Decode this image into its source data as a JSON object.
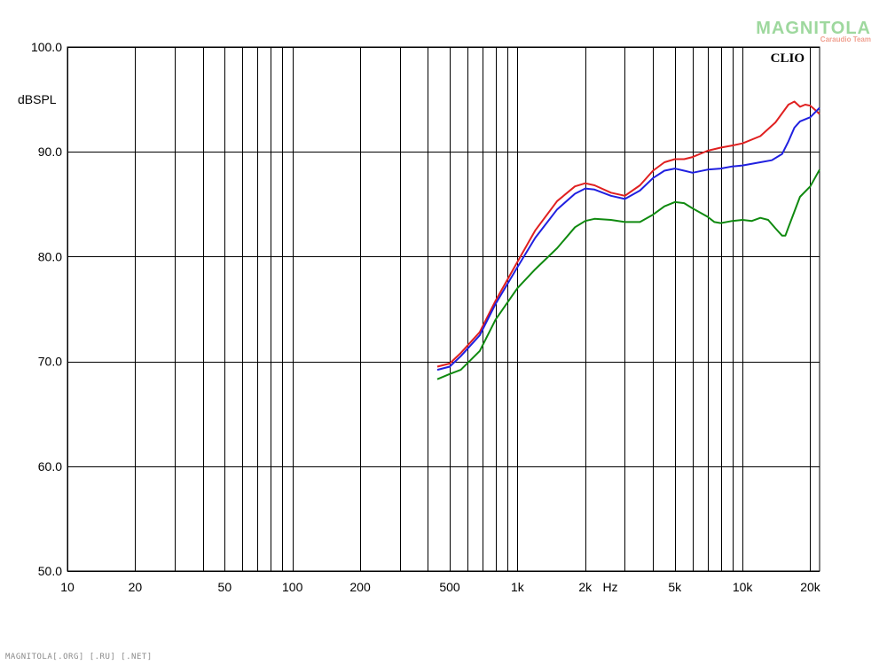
{
  "watermark": {
    "logo": "MAGNITOLA",
    "subtitle": "Caraudio Team"
  },
  "footer": "MAGNITOLA[.ORG] [.RU] [.NET]",
  "chart_data": {
    "type": "line",
    "brand_label": "CLIO",
    "ylabel": "dBSPL",
    "xlabel": "Hz",
    "xscale": "log",
    "xlim": [
      10,
      22000
    ],
    "ylim": [
      50,
      100
    ],
    "grid": true,
    "x_ticks": [
      10,
      20,
      50,
      100,
      200,
      500,
      1000,
      2000,
      5000,
      10000,
      20000
    ],
    "x_tick_labels": [
      "10",
      "20",
      "50",
      "100",
      "200",
      "500",
      "1k",
      "2k",
      "5k",
      "10k",
      "20k"
    ],
    "y_ticks": [
      50,
      60,
      70,
      80,
      90,
      100
    ],
    "y_tick_labels": [
      "50.0",
      "60.0",
      "70.0",
      "80.0",
      "90.0",
      "100.0"
    ],
    "colors": {
      "red": "#e02020",
      "blue": "#2020e0",
      "green": "#108a10"
    },
    "series": [
      {
        "color": "#e02020",
        "points": [
          [
            440,
            69.5
          ],
          [
            500,
            69.8
          ],
          [
            560,
            70.8
          ],
          [
            680,
            72.8
          ],
          [
            800,
            75.8
          ],
          [
            1000,
            79.5
          ],
          [
            1200,
            82.5
          ],
          [
            1500,
            85.3
          ],
          [
            1800,
            86.7
          ],
          [
            2000,
            87.0
          ],
          [
            2200,
            86.8
          ],
          [
            2600,
            86.1
          ],
          [
            3000,
            85.8
          ],
          [
            3500,
            86.8
          ],
          [
            4000,
            88.2
          ],
          [
            4500,
            89.0
          ],
          [
            5000,
            89.3
          ],
          [
            5500,
            89.3
          ],
          [
            6000,
            89.5
          ],
          [
            7000,
            90.1
          ],
          [
            8000,
            90.4
          ],
          [
            9000,
            90.6
          ],
          [
            10000,
            90.8
          ],
          [
            12000,
            91.5
          ],
          [
            14000,
            92.8
          ],
          [
            16000,
            94.5
          ],
          [
            17000,
            94.8
          ],
          [
            18000,
            94.3
          ],
          [
            19000,
            94.5
          ],
          [
            20000,
            94.4
          ],
          [
            21000,
            94.0
          ],
          [
            22000,
            93.6
          ]
        ]
      },
      {
        "color": "#2020e0",
        "points": [
          [
            440,
            69.2
          ],
          [
            500,
            69.5
          ],
          [
            560,
            70.5
          ],
          [
            680,
            72.5
          ],
          [
            800,
            75.5
          ],
          [
            1000,
            79.0
          ],
          [
            1200,
            81.8
          ],
          [
            1500,
            84.5
          ],
          [
            1800,
            86.0
          ],
          [
            2000,
            86.5
          ],
          [
            2200,
            86.4
          ],
          [
            2600,
            85.8
          ],
          [
            3000,
            85.5
          ],
          [
            3500,
            86.3
          ],
          [
            4000,
            87.5
          ],
          [
            4500,
            88.2
          ],
          [
            5000,
            88.4
          ],
          [
            5500,
            88.2
          ],
          [
            6000,
            88.0
          ],
          [
            7000,
            88.3
          ],
          [
            8000,
            88.4
          ],
          [
            9000,
            88.6
          ],
          [
            10000,
            88.7
          ],
          [
            12000,
            89.0
          ],
          [
            13500,
            89.2
          ],
          [
            15000,
            89.8
          ],
          [
            16000,
            91.0
          ],
          [
            17000,
            92.3
          ],
          [
            18000,
            92.9
          ],
          [
            20000,
            93.3
          ],
          [
            22000,
            94.2
          ]
        ]
      },
      {
        "color": "#108a10",
        "points": [
          [
            440,
            68.3
          ],
          [
            500,
            68.8
          ],
          [
            560,
            69.2
          ],
          [
            680,
            71.0
          ],
          [
            800,
            74.0
          ],
          [
            1000,
            77.0
          ],
          [
            1200,
            78.8
          ],
          [
            1500,
            80.8
          ],
          [
            1800,
            82.8
          ],
          [
            2000,
            83.4
          ],
          [
            2200,
            83.6
          ],
          [
            2600,
            83.5
          ],
          [
            3000,
            83.3
          ],
          [
            3500,
            83.3
          ],
          [
            4000,
            84.0
          ],
          [
            4500,
            84.8
          ],
          [
            5000,
            85.2
          ],
          [
            5500,
            85.1
          ],
          [
            6000,
            84.6
          ],
          [
            7000,
            83.8
          ],
          [
            7500,
            83.3
          ],
          [
            8000,
            83.2
          ],
          [
            9000,
            83.4
          ],
          [
            10000,
            83.5
          ],
          [
            11000,
            83.4
          ],
          [
            12000,
            83.7
          ],
          [
            13000,
            83.5
          ],
          [
            14000,
            82.7
          ],
          [
            15000,
            82.0
          ],
          [
            15500,
            82.0
          ],
          [
            16000,
            82.8
          ],
          [
            17000,
            84.3
          ],
          [
            18000,
            85.7
          ],
          [
            20000,
            86.7
          ],
          [
            22000,
            88.3
          ]
        ]
      }
    ]
  }
}
